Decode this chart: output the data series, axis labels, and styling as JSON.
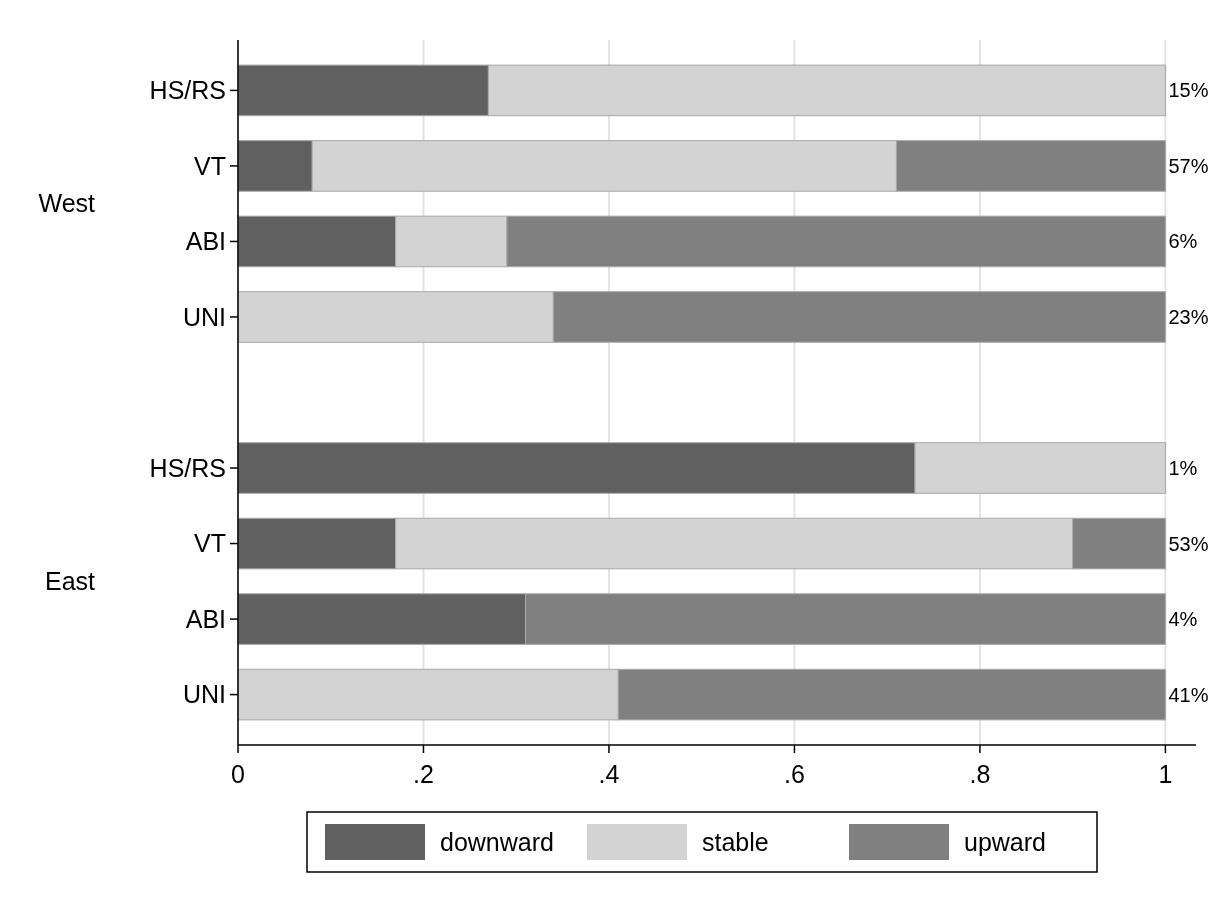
{
  "chart_data": {
    "type": "bar",
    "orientation": "horizontal",
    "stacked": true,
    "categories": [
      "HS/RS",
      "VT",
      "ABI",
      "UNI",
      null,
      "HS/RS",
      "VT",
      "ABI",
      "UNI"
    ],
    "series": [
      {
        "name": "downward",
        "color": "#606060",
        "values": [
          0.27,
          0.08,
          0.17,
          0,
          null,
          0.73,
          0.17,
          0.31,
          0
        ]
      },
      {
        "name": "stable",
        "color": "#d3d3d3",
        "values": [
          0.73,
          0.63,
          0.12,
          0.34,
          null,
          0.27,
          0.73,
          0,
          0.41
        ]
      },
      {
        "name": "upward",
        "color": "#808080",
        "values": [
          0,
          0.29,
          0.71,
          0.66,
          null,
          0,
          0.1,
          0.69,
          0.59
        ]
      }
    ],
    "xlim": [
      0,
      1.033
    ],
    "xticks": [
      0,
      {
        "value": 0.2,
        "label": ".2"
      },
      {
        "value": 0.4,
        "label": ".4"
      },
      {
        "value": 0.6,
        "label": ".6"
      },
      {
        "value": 0.8,
        "label": ".8"
      },
      1
    ],
    "grid": "x",
    "legend": "bottom",
    "annotations": [
      "15%",
      "57%",
      "6%",
      "23%",
      "1%",
      "53%",
      "4%",
      "41%",
      "West",
      "East"
    ]
  }
}
